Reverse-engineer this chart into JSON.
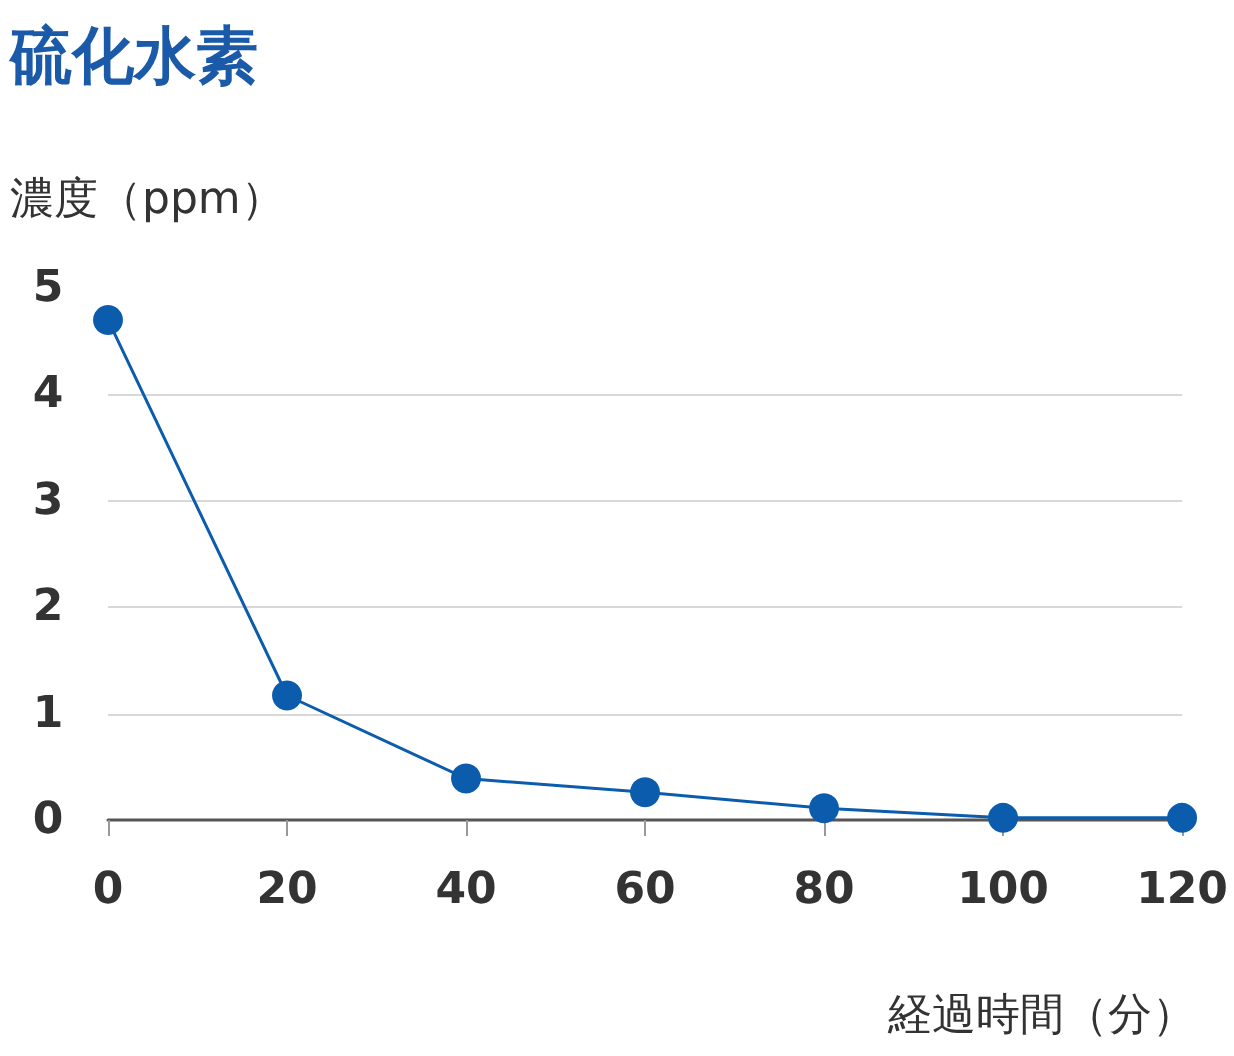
{
  "chart_data": {
    "type": "line",
    "title": "硫化水素",
    "ylabel": "濃度（ppm）",
    "xlabel": "経過時間（分）",
    "x": [
      0,
      20,
      40,
      60,
      80,
      100,
      120
    ],
    "series": [
      {
        "color": "#0b5cad",
        "values": [
          4.7,
          1.17,
          0.39,
          0.26,
          0.11,
          0.02,
          0.02
        ]
      }
    ],
    "xlim": [
      0,
      120
    ],
    "xticks": [
      0,
      20,
      40,
      60,
      80,
      100,
      120
    ],
    "ylim": [
      0,
      5
    ],
    "yticks": [
      0,
      1,
      2,
      3,
      4,
      5
    ],
    "grid": "y",
    "marker": "circle",
    "line_style": "solid"
  }
}
